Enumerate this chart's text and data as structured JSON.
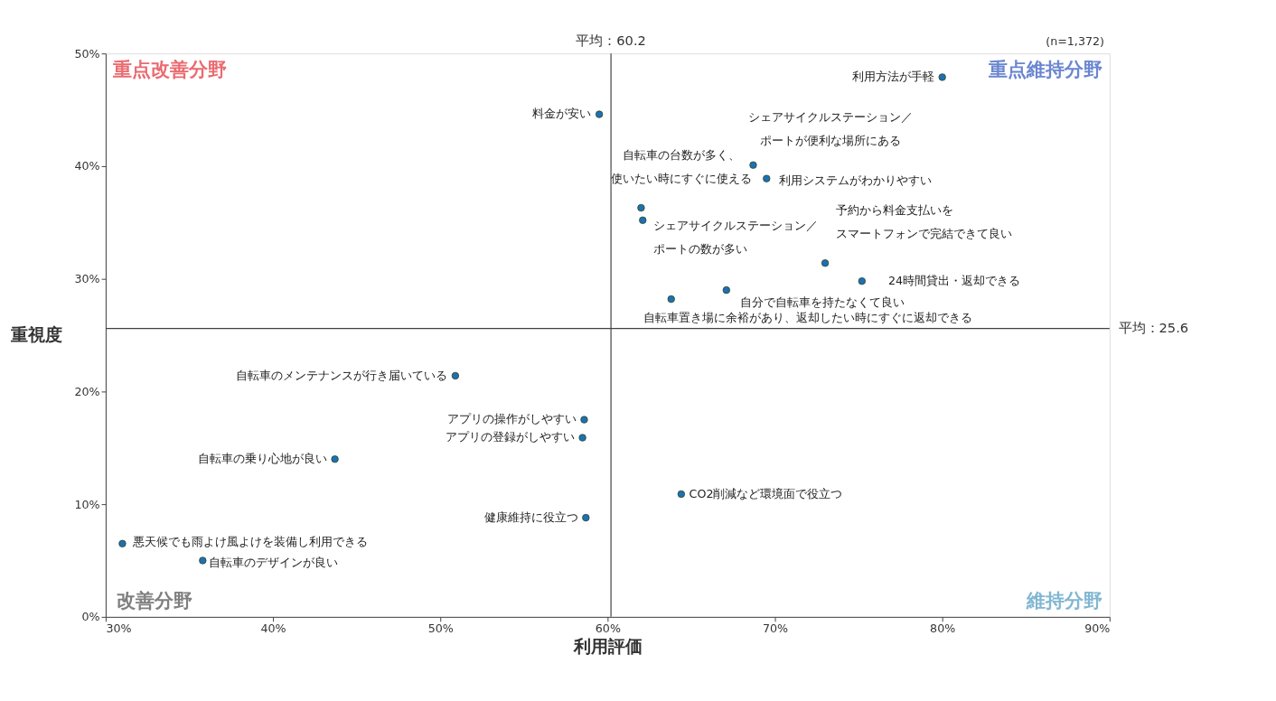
{
  "chart_data": {
    "type": "scatter",
    "xlabel": "利用評価",
    "ylabel": "重視度",
    "x": [
      80.0,
      59.5,
      68.7,
      69.5,
      62.0,
      62.1,
      73.0,
      75.2,
      67.1,
      63.8,
      50.9,
      58.6,
      58.5,
      43.7,
      64.4,
      58.7,
      31.0,
      35.8
    ],
    "series": [
      {
        "color": "#1f6fb4",
        "values": [
          47.9,
          44.6,
          40.1,
          38.9,
          36.3,
          35.2,
          31.4,
          29.8,
          29.0,
          28.2,
          21.4,
          17.5,
          15.9,
          14.0,
          10.9,
          8.8,
          6.5,
          5.0
        ]
      }
    ],
    "xlim": [
      30,
      90
    ],
    "ylim": [
      0,
      50
    ],
    "xticks": [
      {
        "value": 30,
        "label": "30%"
      },
      {
        "value": 40,
        "label": "40%"
      },
      {
        "value": 50,
        "label": "50%"
      },
      {
        "value": 60,
        "label": "60%"
      },
      {
        "value": 70,
        "label": "70%"
      },
      {
        "value": 80,
        "label": "80%"
      },
      {
        "value": 90,
        "label": "90%"
      }
    ],
    "yticks": [
      {
        "value": 0,
        "label": "0%"
      },
      {
        "value": 10,
        "label": "10%"
      },
      {
        "value": 20,
        "label": "20%"
      },
      {
        "value": 30,
        "label": "30%"
      },
      {
        "value": 40,
        "label": "40%"
      },
      {
        "value": 50,
        "label": "50%"
      }
    ],
    "ref_lines": [
      {
        "axis": "x",
        "value": 60.2,
        "label": "平均：60.2",
        "color": "#404040"
      },
      {
        "axis": "y",
        "value": 25.6,
        "label": "平均：25.6",
        "color": "#404040"
      }
    ],
    "marker": "circle",
    "grid": false,
    "annotations": [
      {
        "text": "利用方法が手軽",
        "x": 80.0,
        "y": 47.9
      },
      {
        "text": "料金が安い",
        "x": 59.5,
        "y": 44.6
      },
      "シェアサイクルステーション／",
      {
        "text": "ポートが便利な場所にある",
        "x": 68.7,
        "y": 40.1
      },
      {
        "text": "利用システムがわかりやすい",
        "x": 69.5,
        "y": 38.9
      },
      "自転車の台数が多く、",
      {
        "text": "使いたい時にすぐに使える",
        "x": 62.0,
        "y": 36.3
      },
      {
        "text": "シェアサイクルステーション／",
        "x": 62.1,
        "y": 35.2
      },
      {
        "text": "ポートの数が多い",
        "x": 62.1,
        "y": 35.2
      },
      "予約から料金支払いを",
      {
        "text": "スマートフォンで完結できて良い",
        "x": 73.0,
        "y": 31.4
      },
      {
        "text": "24時間貸出・返却できる",
        "x": 75.2,
        "y": 29.8
      },
      {
        "text": "自分で自転車を持たなくて良い",
        "x": 67.1,
        "y": 29.0
      },
      {
        "text": "自転車置き場に余裕があり、返却したい時にすぐに返却できる",
        "x": 63.8,
        "y": 28.2
      },
      {
        "text": "自転車のメンテナンスが行き届いている",
        "x": 50.9,
        "y": 21.4
      },
      {
        "text": "アプリの操作がしやすい",
        "x": 58.6,
        "y": 17.5
      },
      {
        "text": "アプリの登録がしやすい",
        "x": 58.5,
        "y": 15.9
      },
      {
        "text": "自転車の乗り心地が良い",
        "x": 43.7,
        "y": 14.0
      },
      {
        "text": "CO2削減など環境面で役立つ",
        "x": 64.4,
        "y": 10.9
      },
      {
        "text": "健康維持に役立つ",
        "x": 58.7,
        "y": 8.8
      },
      {
        "text": "悪天候でも雨よけ風よけを装備し利用できる",
        "x": 31.0,
        "y": 6.5
      },
      {
        "text": "自転車のデザインが良い",
        "x": 35.8,
        "y": 5.0
      },
      "重点改善分野",
      "重点維持分野",
      "改善分野",
      "維持分野",
      "(n=1,372)"
    ]
  }
}
